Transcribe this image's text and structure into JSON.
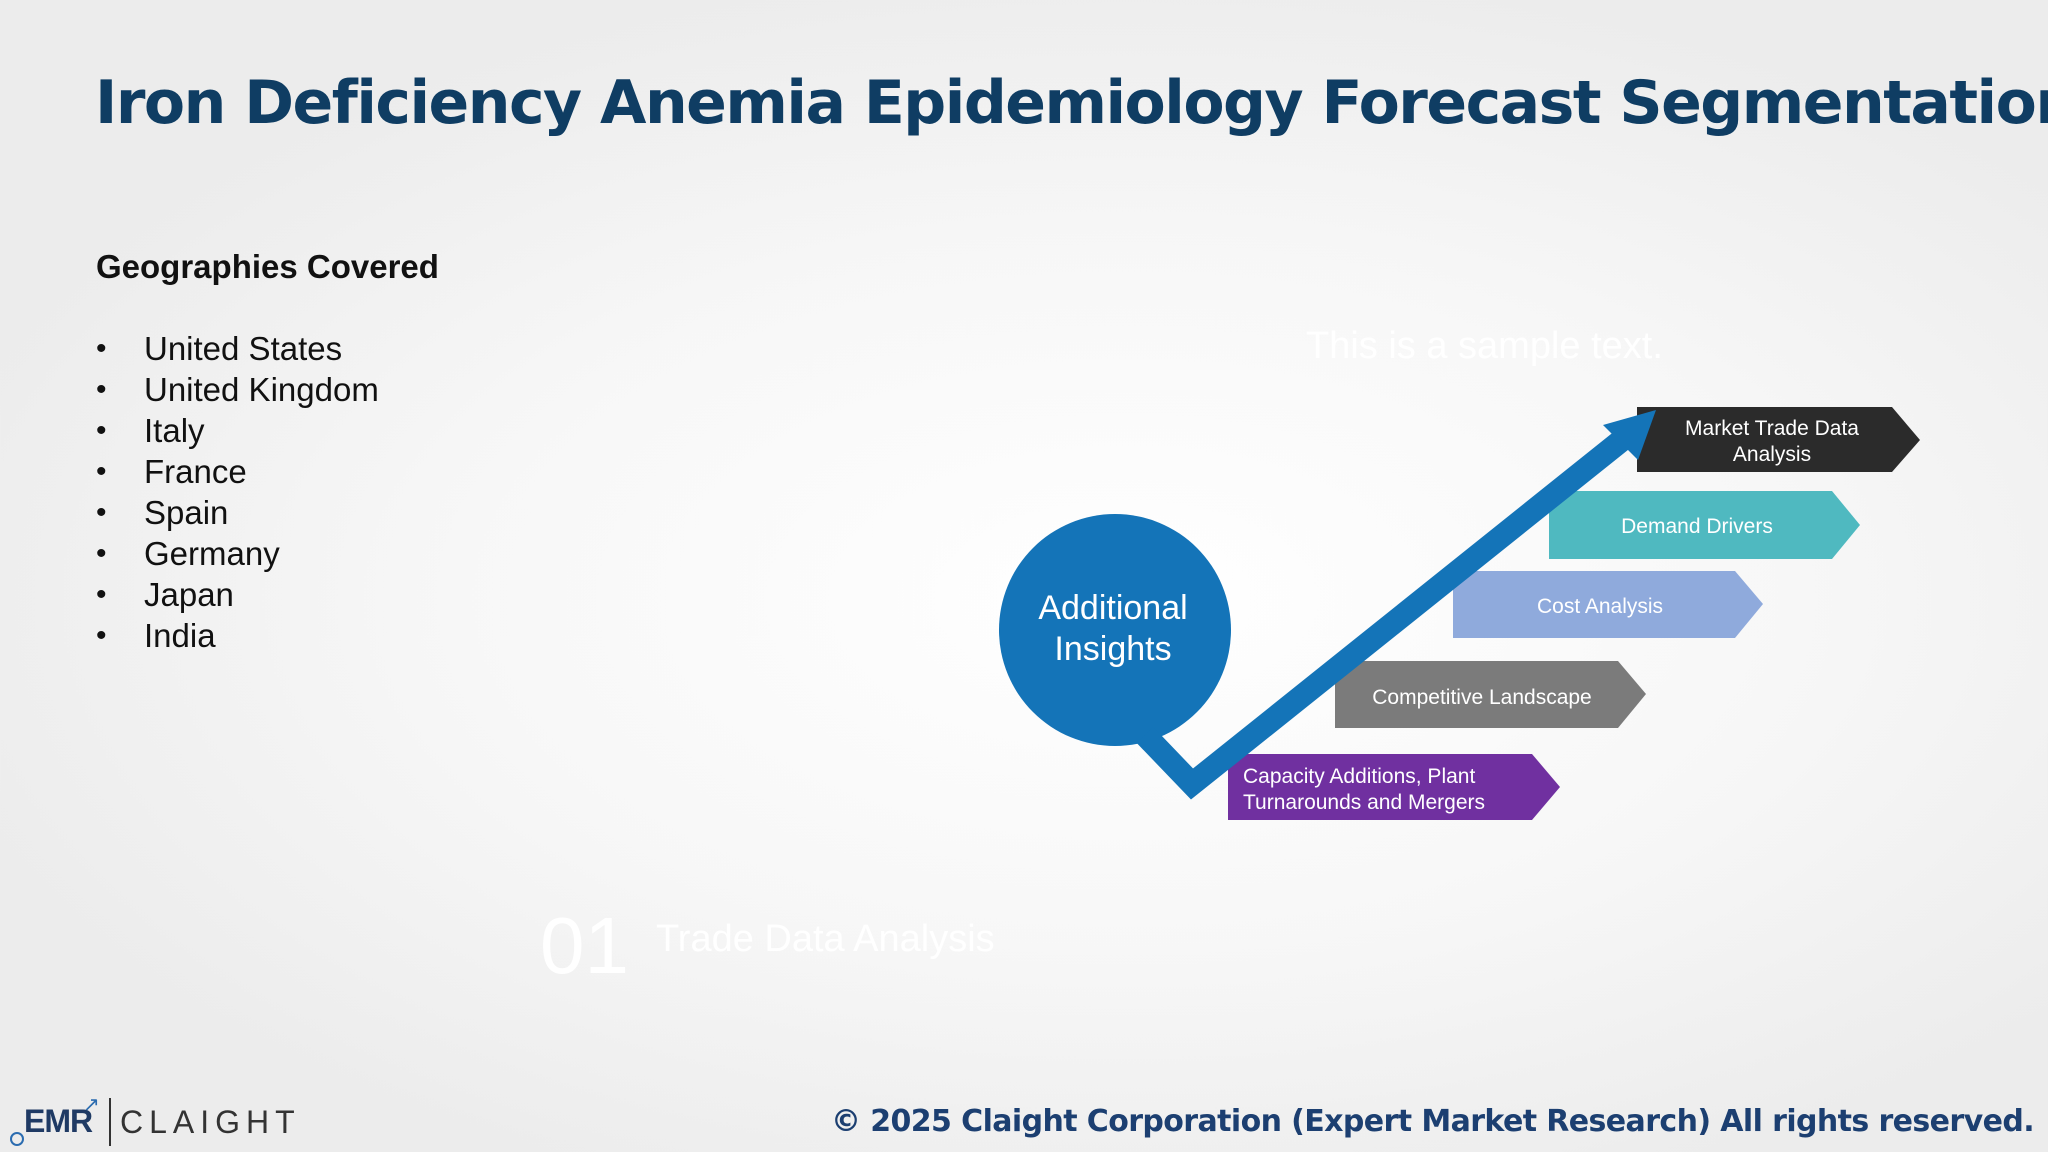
{
  "title": "Iron Deficiency Anemia Epidemiology Forecast Segmentation",
  "geographies": {
    "heading": "Geographies Covered",
    "items": [
      "United States",
      "United Kingdom",
      "Italy",
      "France",
      "Spain",
      "Germany",
      "Japan",
      "India"
    ]
  },
  "diagram": {
    "center_label_line1": "Additional",
    "center_label_line2": "Insights",
    "steps": [
      {
        "line1": "Capacity Additions, Plant",
        "line2": "Turnarounds and Mergers",
        "color": "#7030a0"
      },
      {
        "line1": "Competitive Landscape",
        "line2": "",
        "color": "#7b7b7b"
      },
      {
        "line1": "Cost Analysis",
        "line2": "",
        "color": "#8faadc"
      },
      {
        "line1": "Demand Drivers",
        "line2": "",
        "color": "#4fb9c0"
      },
      {
        "line1": "Market Trade Data",
        "line2": "Analysis",
        "color": "#2b2b2b"
      }
    ],
    "arrow_color": "#1474b8",
    "circle_color": "#1474b8"
  },
  "ghost_text": {
    "sample": "This is a sample text.",
    "number": "01",
    "label": "Trade Data Analysis"
  },
  "footer": "© 2025 Claight Corporation (Expert Market Research) All rights reserved.",
  "logo": {
    "emr": "EMR",
    "claight": "CLAIGHT"
  }
}
